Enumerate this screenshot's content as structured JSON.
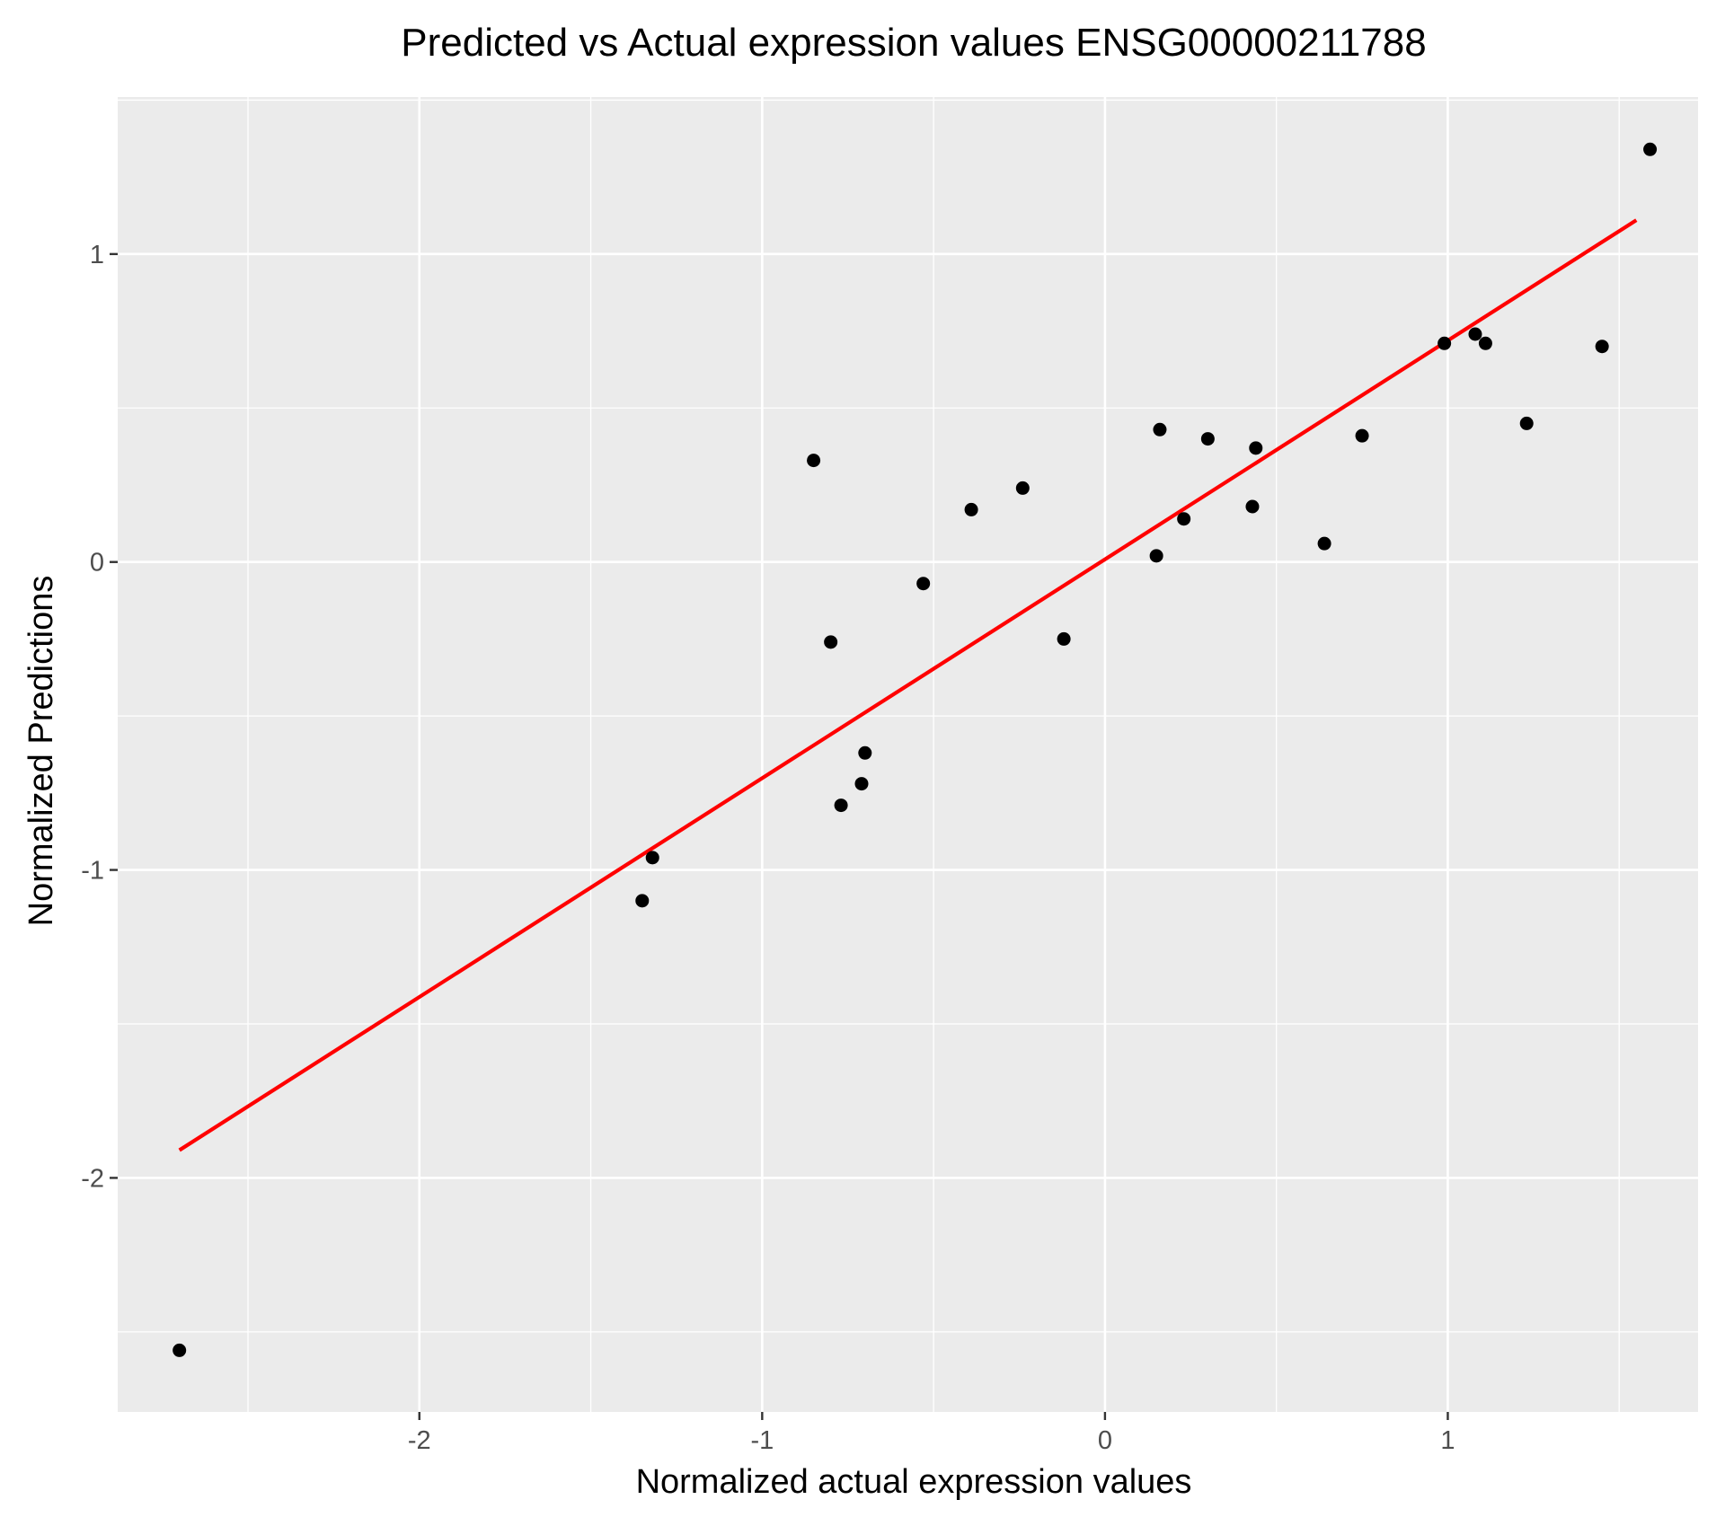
{
  "chart_data": {
    "type": "scatter",
    "title": "Predicted vs Actual expression values ENSG00000211788",
    "xlabel": "Normalized actual expression values",
    "ylabel": "Normalized Predictions",
    "xlim": [
      -2.88,
      1.73
    ],
    "ylim": [
      -2.76,
      1.51
    ],
    "x_ticks": [
      -2,
      -1,
      0,
      1
    ],
    "x_tick_labels": [
      "-2",
      "-1",
      "0",
      "1"
    ],
    "y_ticks": [
      -2,
      -1,
      0,
      1
    ],
    "y_tick_labels": [
      "-2",
      "-1",
      "0",
      "1"
    ],
    "grid": true,
    "legend": "none",
    "panel_color": "#ebebeb",
    "point_color": "#000000",
    "series": [
      {
        "type": "scatter",
        "x": [
          -2.7,
          -1.35,
          -1.32,
          -0.85,
          -0.8,
          -0.77,
          -0.71,
          -0.7,
          -0.53,
          -0.39,
          -0.24,
          -0.12,
          0.15,
          0.16,
          0.23,
          0.3,
          0.43,
          0.44,
          0.64,
          0.75,
          0.99,
          1.08,
          1.11,
          1.23,
          1.45,
          1.59
        ],
        "y": [
          -2.56,
          -1.1,
          -0.96,
          0.33,
          -0.26,
          -0.79,
          -0.72,
          -0.62,
          -0.07,
          0.17,
          0.24,
          -0.25,
          0.02,
          0.43,
          0.14,
          0.4,
          0.18,
          0.37,
          0.06,
          0.41,
          0.71,
          0.74,
          0.71,
          0.45,
          0.7,
          1.34
        ]
      },
      {
        "type": "line",
        "color": "#ff0000",
        "x": [
          -2.7,
          1.55
        ],
        "y": [
          -1.91,
          1.11
        ]
      }
    ]
  }
}
